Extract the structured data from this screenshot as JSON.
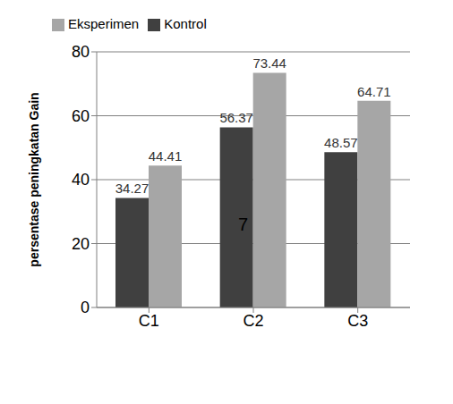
{
  "chart_data": {
    "type": "bar",
    "ylabel": "persentase peningkatan Gain",
    "categories": [
      "C1",
      "C2",
      "C3"
    ],
    "series": [
      {
        "name": "Kontrol",
        "color": "#404040",
        "values": [
          34.27,
          56.37,
          48.57
        ]
      },
      {
        "name": "Eksperimen",
        "color": "#a6a6a6",
        "values": [
          44.41,
          73.44,
          64.71
        ]
      }
    ],
    "ylim": [
      0,
      80
    ],
    "yticks": [
      0,
      20,
      40,
      60,
      80
    ],
    "grid": true,
    "legend": "top",
    "data_labels": true,
    "annotations": [
      "7"
    ]
  }
}
